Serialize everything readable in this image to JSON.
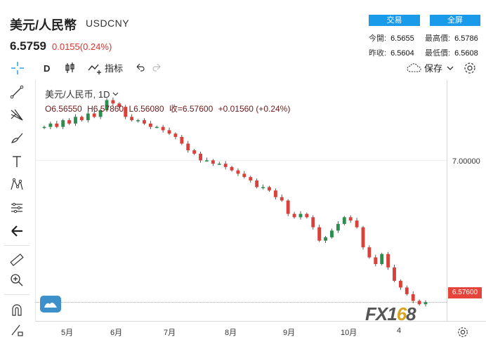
{
  "header": {
    "title": "美元/人民幣",
    "symbol": "USDCNY",
    "last_price": "6.5759",
    "change": "0.0155(0.24%)",
    "buttons": {
      "trade": "交易",
      "fullscreen": "全屏"
    },
    "stats": [
      {
        "key": "今開:",
        "value": "6.5655"
      },
      {
        "key": "最高價:",
        "value": "6.5786"
      },
      {
        "key": "昨收:",
        "value": "6.5604"
      },
      {
        "key": "最低價:",
        "value": "6.5608"
      }
    ]
  },
  "toolbar": {
    "interval": "D",
    "indicators": "指标",
    "save": "保存"
  },
  "legend": {
    "name": "美元/人民币, 1D",
    "open": "O6.56550",
    "high": "H6.57860",
    "low": "L6.56080",
    "close": "收=6.57600",
    "change": "+0.01560 (+0.24%)"
  },
  "price_axis": {
    "tick": "7.00000",
    "current": "6.57600"
  },
  "time_axis": [
    "5月",
    "6月",
    "7月",
    "8月",
    "9月",
    "10月",
    "4"
  ],
  "watermark": {
    "prefix": "FX1",
    "accent": "6",
    "suffix": "8"
  },
  "colors": {
    "up": "#2c8e4e",
    "down": "#d9413a",
    "accent": "#1a9bea"
  },
  "chart_data": {
    "type": "candlestick",
    "series_close": [
      7.1,
      7.11,
      7.1,
      7.12,
      7.11,
      7.13,
      7.12,
      7.14,
      7.13,
      7.15,
      7.18,
      7.17,
      7.16,
      7.13,
      7.12,
      7.12,
      7.11,
      7.1,
      7.1,
      7.09,
      7.08,
      7.07,
      7.05,
      7.03,
      7.02,
      7.0,
      7.0,
      6.99,
      6.99,
      6.98,
      6.97,
      6.96,
      6.95,
      6.94,
      6.92,
      6.92,
      6.91,
      6.89,
      6.88,
      6.84,
      6.83,
      6.84,
      6.83,
      6.8,
      6.76,
      6.77,
      6.79,
      6.81,
      6.83,
      6.82,
      6.8,
      6.74,
      6.71,
      6.69,
      6.72,
      6.68,
      6.64,
      6.62,
      6.6,
      6.58,
      6.57,
      6.576
    ],
    "ylim": [
      6.52,
      7.24
    ],
    "last_close": 6.576
  }
}
